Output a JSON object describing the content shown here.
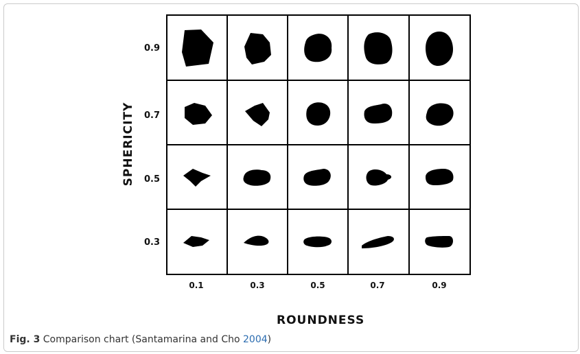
{
  "figure": {
    "caption_label": "Fig. 3",
    "caption_text": "Comparison chart (Santamarina and Cho ",
    "caption_year": "2004",
    "caption_close": ")"
  },
  "chart_data": {
    "type": "table",
    "title": "",
    "xlabel": "ROUNDNESS",
    "ylabel": "SPHERICITY",
    "x_ticks": [
      "0.1",
      "0.3",
      "0.5",
      "0.7",
      "0.9"
    ],
    "y_ticks": [
      "0.9",
      "0.7",
      "0.5",
      "0.3"
    ],
    "cells": "grid of black particle silhouettes, one per roundness/sphericity combination",
    "colors": {
      "particle": "#000000",
      "grid": "#000000"
    }
  }
}
